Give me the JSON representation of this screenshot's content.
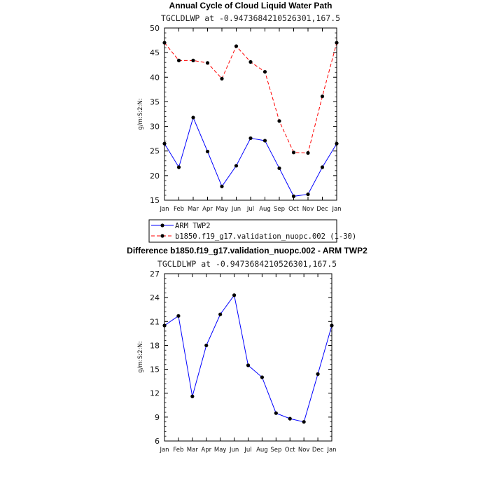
{
  "chart_data": [
    {
      "type": "line",
      "title": "Annual Cycle of Cloud Liquid Water Path",
      "subtitle": "TGCLDLWP at -0.9473684210526301,167.5",
      "ylabel": "g/m:S:2:N:",
      "xlabel": "",
      "categories": [
        "Jan",
        "Feb",
        "Mar",
        "Apr",
        "May",
        "Jun",
        "Jul",
        "Aug",
        "Sep",
        "Oct",
        "Nov",
        "Dec",
        "Jan"
      ],
      "ylim": [
        15,
        50
      ],
      "yticks": [
        15,
        20,
        25,
        30,
        35,
        40,
        45,
        50
      ],
      "series": [
        {
          "name": "ARM TWP2",
          "color": "#0000ff",
          "dash": "solid",
          "values": [
            26.5,
            21.7,
            31.8,
            24.9,
            17.8,
            22.0,
            27.6,
            27.1,
            21.5,
            15.8,
            16.2,
            21.7,
            26.5
          ]
        },
        {
          "name": "b1850.f19_g17.validation_nuopc.002 (1-30)",
          "color": "#ff0000",
          "dash": "dashed",
          "values": [
            47.0,
            43.4,
            43.4,
            42.9,
            39.7,
            46.3,
            43.1,
            41.1,
            31.1,
            24.7,
            24.6,
            36.1,
            47.0
          ]
        }
      ],
      "legend": "below"
    },
    {
      "type": "line",
      "title": "Difference b1850.f19_g17.validation_nuopc.002 - ARM TWP2",
      "subtitle": "TGCLDLWP at -0.9473684210526301,167.5",
      "ylabel": "g/m:S:2:N:",
      "xlabel": "",
      "categories": [
        "Jan",
        "Feb",
        "Mar",
        "Apr",
        "May",
        "Jun",
        "Jul",
        "Aug",
        "Sep",
        "Oct",
        "Nov",
        "Dec",
        "Jan"
      ],
      "ylim": [
        6,
        27
      ],
      "yticks": [
        6,
        9,
        12,
        15,
        18,
        21,
        24,
        27
      ],
      "series": [
        {
          "color": "#0000ff",
          "dash": "solid",
          "values": [
            20.5,
            21.7,
            11.6,
            18.0,
            21.9,
            24.3,
            15.5,
            14.0,
            9.5,
            8.8,
            8.4,
            14.4,
            20.5
          ]
        }
      ]
    }
  ]
}
